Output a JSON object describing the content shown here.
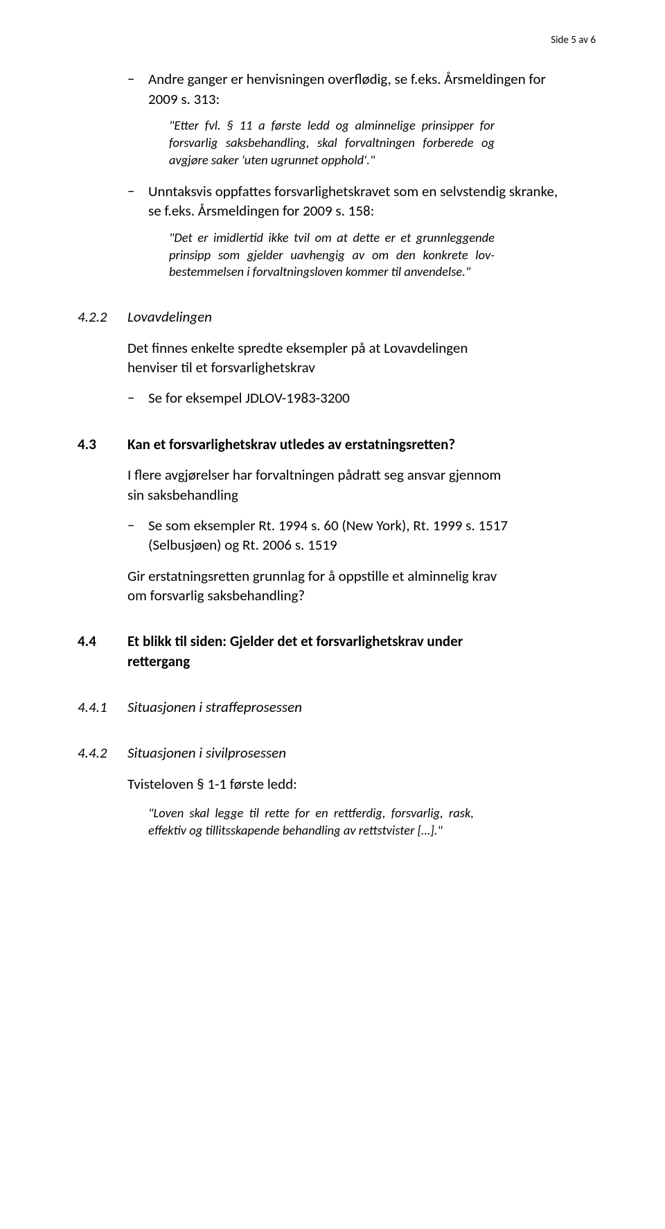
{
  "page_number": "Side 5 av 6",
  "intro_item1_line1": "Andre ganger er henvisningen overflødig, se f.eks. Årsmeldingen for 2009 s. 313:",
  "quote1": "\"Etter fvl. § 11 a første ledd og alminnelige prinsipper for forsvarlig saksbehandling, skal forvaltningen forberede og avgjøre saker 'uten ugrunnet opphold'.\"",
  "intro_item2_line1": "Unntaksvis oppfattes forsvarlighetskravet som en selvstendig skranke, se f.eks. Årsmeldingen for 2009 s. 158:",
  "quote2": "\"Det er imidlertid ikke tvil om at dette er et grunnleggende prinsipp som gjelder uavhengig av om den konkrete lov­bestemmelsen i forvaltningsloven kommer til anvendelse.\"",
  "h_422_num": "4.2.2",
  "h_422_txt": "Lovavdelingen",
  "p_422": "Det finnes enkelte spredte eksempler på at Lovavdelingen henviser til et forsvarlighetskrav",
  "li_422": "Se for eksempel JDLOV-1983-3200",
  "h_43_num": "4.3",
  "h_43_txt": "Kan et forsvarlighetskrav utledes av erstatningsretten?",
  "p_43a": "I flere avgjørelser har forvaltningen pådratt seg ansvar gjennom sin saksbehandling",
  "li_43": "Se som eksempler Rt. 1994 s. 60 (New York), Rt. 1999 s. 1517 (Selbusjøen) og Rt. 2006 s. 1519",
  "p_43b": "Gir erstatningsretten grunnlag for å oppstille et alminnelig krav om forsvarlig saksbehandling?",
  "h_44_num": "4.4",
  "h_44_txt": "Et blikk til siden: Gjelder det et forsvarlighetskrav under rettergang",
  "h_441_num": "4.4.1",
  "h_441_txt": "Situasjonen i straffeprosessen",
  "h_442_num": "4.4.2",
  "h_442_txt": "Situasjonen i sivilprosessen",
  "p_442": "Tvisteloven § 1-1 første ledd:",
  "quote442": "\"Loven skal legge til rette for en rettferdig, forsvarlig, rask, effektiv og tillitsskapende behandling av rettstvister […].\""
}
